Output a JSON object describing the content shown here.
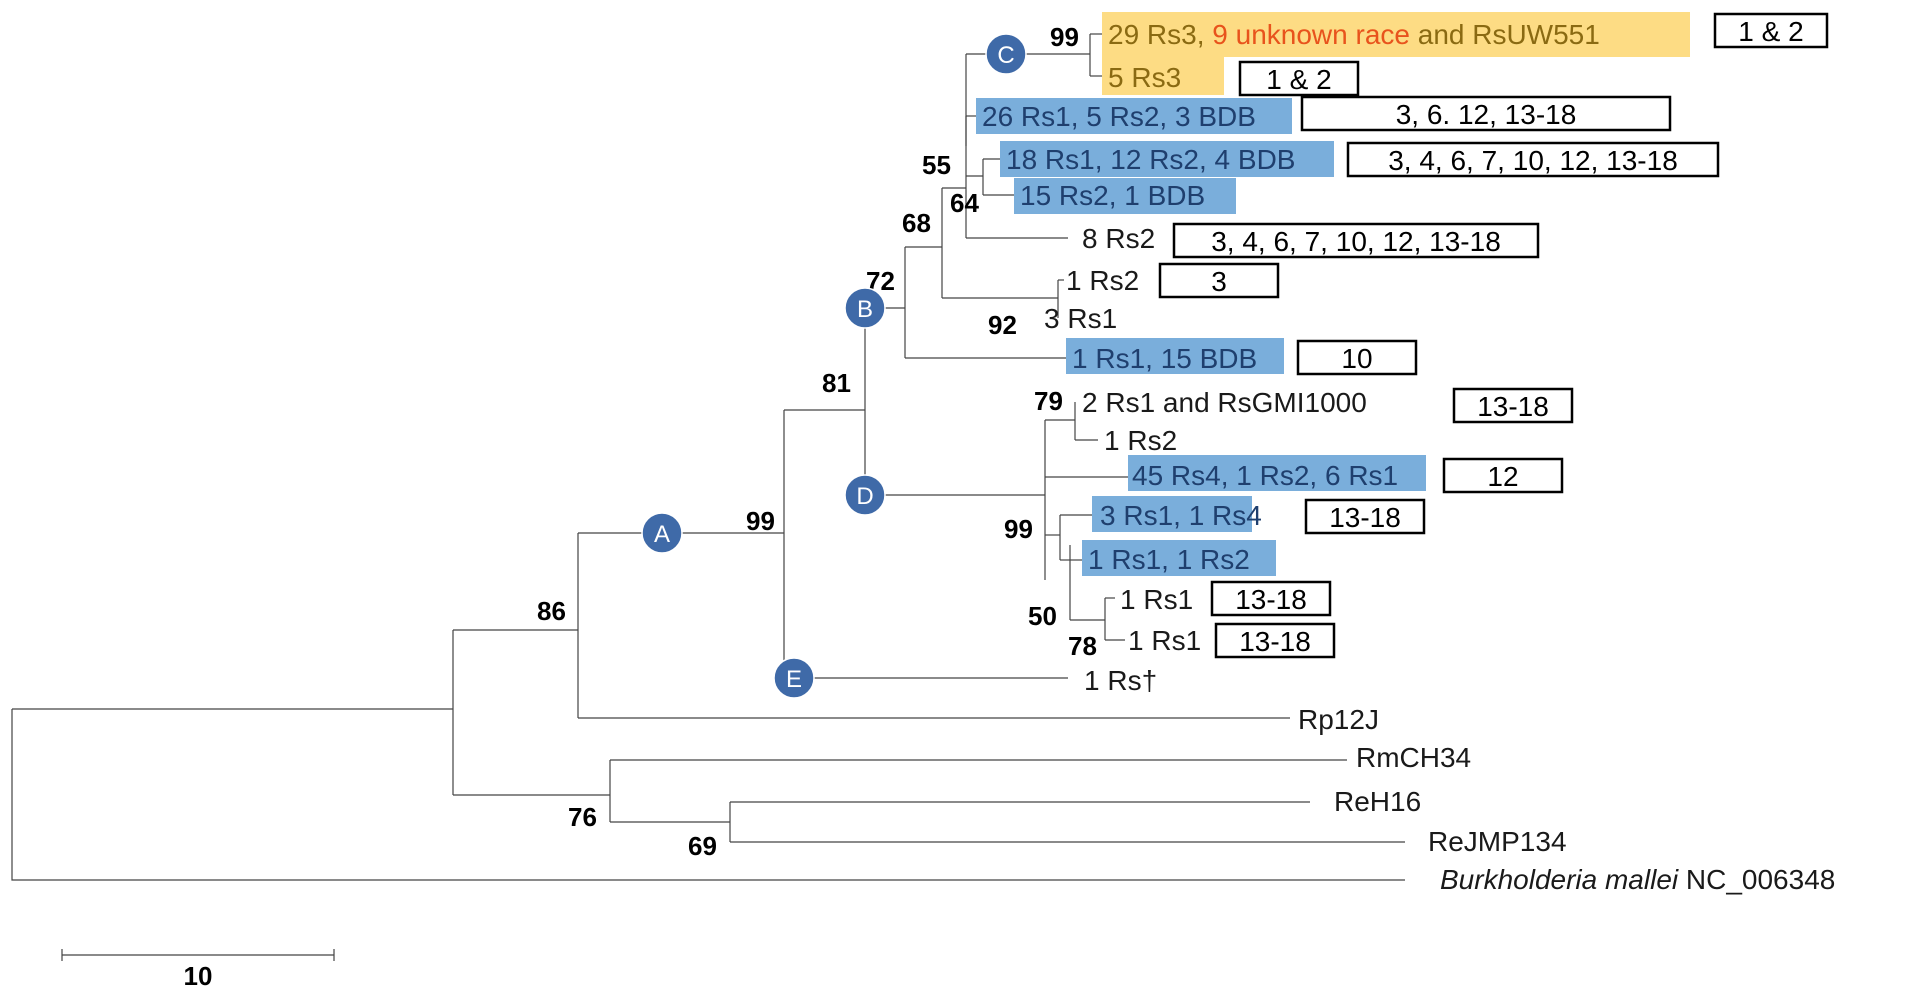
{
  "nodes": {
    "A": "A",
    "B": "B",
    "C": "C",
    "D": "D",
    "E": "E"
  },
  "support": {
    "c_node": "99",
    "n55": "55",
    "n64": "64",
    "n68": "68",
    "n72": "72",
    "n92": "92",
    "n81": "81",
    "n79": "79",
    "n99d": "99",
    "n50": "50",
    "n78": "78",
    "n99a": "99",
    "n86": "86",
    "n76": "76",
    "n69": "69"
  },
  "leaves": {
    "l1_part1": "29 Rs3, ",
    "l1_part2": "9 unknown race",
    "l1_part3": " and RsUW551",
    "l2": "5 Rs3",
    "l3": "26 Rs1, 5 Rs2, 3 BDB",
    "l4": "18 Rs1, 12 Rs2, 4 BDB",
    "l5": "15 Rs2, 1 BDB",
    "l6": "8 Rs2",
    "l7": "1 Rs2",
    "l8": "3 Rs1",
    "l9": "1 Rs1, 15 BDB",
    "l10": "2 Rs1 and RsGMI1000",
    "l11": "1 Rs2",
    "l12": "45 Rs4, 1 Rs2, 6 Rs1",
    "l13": "3 Rs1, 1 Rs4",
    "l14": "1 Rs1, 1 Rs2",
    "l15": "1 Rs1",
    "l16": "1 Rs1",
    "l17": "1 Rs†",
    "l18": "Rp12J",
    "l19": "RmCH34",
    "l20": "ReH16",
    "l21": "ReJMP134",
    "l22_italic": "Burkholderia mallei",
    "l22_rest": " NC_006348"
  },
  "boxes": {
    "b1": "1 & 2",
    "b2": "1 & 2",
    "b3": "3, 6. 12, 13-18",
    "b4": "3, 4, 6, 7, 10, 12, 13-18",
    "b6": "3, 4, 6, 7, 10, 12, 13-18",
    "b7": "3",
    "b9": "10",
    "b10": "13-18",
    "b12": "12",
    "b13": "13-18",
    "b15": "13-18",
    "b16": "13-18"
  },
  "scale_bar": {
    "label": "10"
  },
  "colors": {
    "highlight_blue": "#7aaedb",
    "highlight_yellow": "#fddc84",
    "orange_text": "#e8531c",
    "yellow_text": "#8a6a12",
    "blue_text": "#1f3f6e",
    "node_fill": "#3f6aa8"
  }
}
